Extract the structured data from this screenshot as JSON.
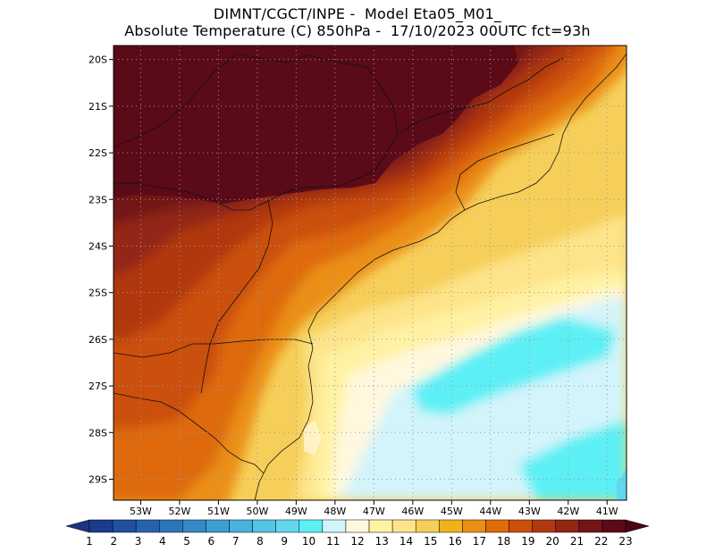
{
  "header": {
    "line1": "DIMNT/CGCT/INPE -  Model Eta05_M01_",
    "line2": "Absolute Temperature (C) 850hPa -  17/10/2023 00UTC fct=93h"
  },
  "map": {
    "lon_range": [
      -53.7,
      -40.5
    ],
    "lat_range": [
      -29.45,
      -19.7
    ],
    "lat_ticks": [
      "20S",
      "21S",
      "22S",
      "23S",
      "24S",
      "25S",
      "26S",
      "27S",
      "28S",
      "29S"
    ],
    "lon_ticks": [
      "53W",
      "52W",
      "51W",
      "50W",
      "49W",
      "48W",
      "47W",
      "46W",
      "45W",
      "44W",
      "43W",
      "42W",
      "41W"
    ],
    "grid": true,
    "field": "temperature_850hPa",
    "warm_core_note_max": 23,
    "cool_core_min": 10
  },
  "colorbar": {
    "labels": [
      "1",
      "2",
      "3",
      "4",
      "5",
      "6",
      "7",
      "8",
      "9",
      "10",
      "11",
      "12",
      "13",
      "14",
      "15",
      "16",
      "17",
      "18",
      "19",
      "20",
      "21",
      "22",
      "23"
    ],
    "colors": [
      "#1b3c8c",
      "#20509e",
      "#2563ad",
      "#2b76b9",
      "#348ac6",
      "#3d9ed2",
      "#48b1dc",
      "#55c4e6",
      "#62d7ee",
      "#5cf0f5",
      "#d3f4fa",
      "#fff8de",
      "#fff2a3",
      "#fde48a",
      "#f6cf5a",
      "#f1b11a",
      "#eb8f14",
      "#de6b0c",
      "#cb500b",
      "#b1390f",
      "#932613",
      "#731515",
      "#5b0a18"
    ],
    "left_arrow_color": "#1a3580",
    "right_arrow_color": "#4a0716"
  }
}
